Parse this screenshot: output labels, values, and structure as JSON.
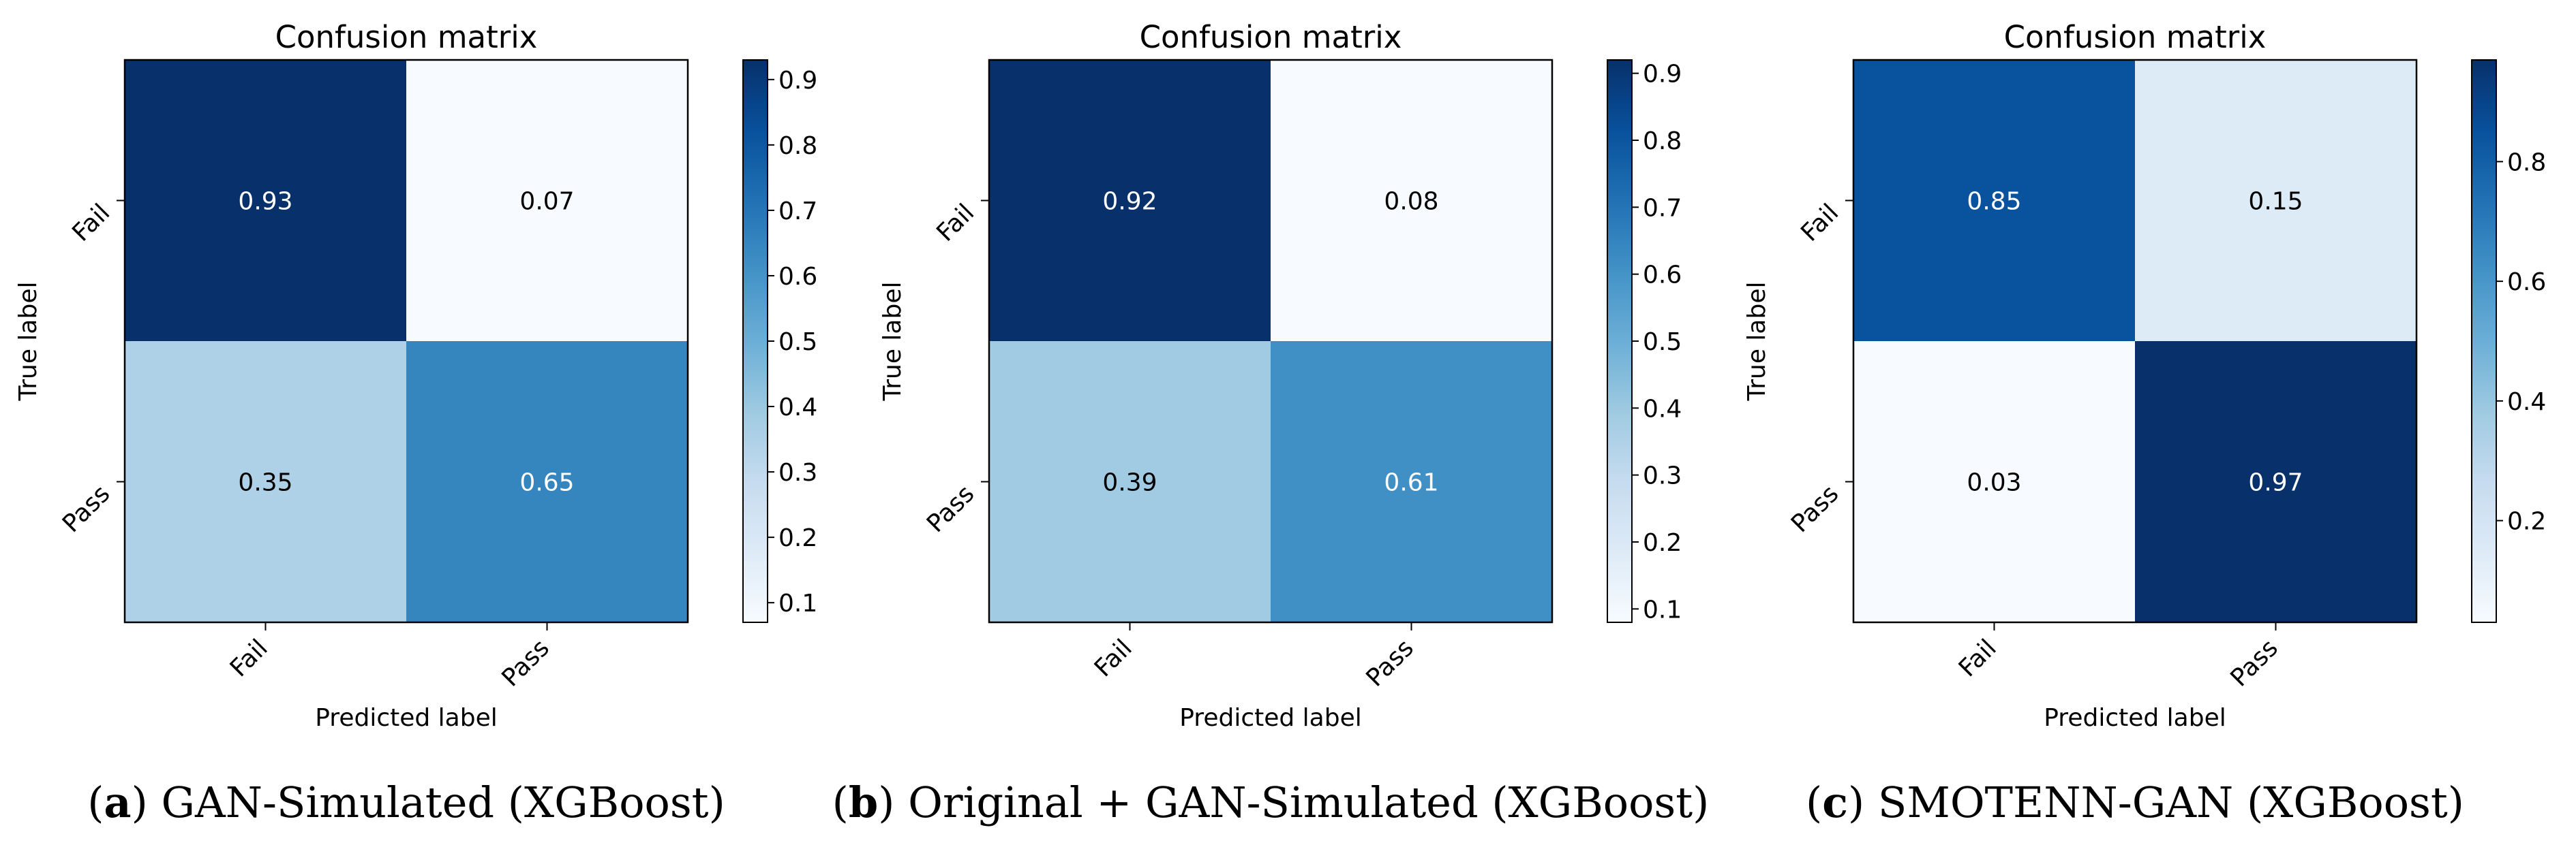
{
  "chart_data": [
    {
      "type": "heatmap",
      "title": "Confusion matrix",
      "xlabel": "Predicted label",
      "ylabel": "True label",
      "x_categories": [
        "Fail",
        "Pass"
      ],
      "y_categories": [
        "Fail",
        "Pass"
      ],
      "values": [
        [
          0.93,
          0.07
        ],
        [
          0.35,
          0.65
        ]
      ],
      "cell_labels": [
        [
          "0.93",
          "0.07"
        ],
        [
          "0.35",
          "0.65"
        ]
      ],
      "colormap": "Blues",
      "colorbar": {
        "range": [
          0.07,
          0.93
        ],
        "ticks": [
          "0.1",
          "0.2",
          "0.3",
          "0.4",
          "0.5",
          "0.6",
          "0.7",
          "0.8",
          "0.9"
        ]
      },
      "caption": {
        "letter": "a",
        "text": "GAN-Simulated (XGBoost)"
      }
    },
    {
      "type": "heatmap",
      "title": "Confusion matrix",
      "xlabel": "Predicted label",
      "ylabel": "True label",
      "x_categories": [
        "Fail",
        "Pass"
      ],
      "y_categories": [
        "Fail",
        "Pass"
      ],
      "values": [
        [
          0.92,
          0.08
        ],
        [
          0.39,
          0.61
        ]
      ],
      "cell_labels": [
        [
          "0.92",
          "0.08"
        ],
        [
          "0.39",
          "0.61"
        ]
      ],
      "colormap": "Blues",
      "colorbar": {
        "range": [
          0.08,
          0.92
        ],
        "ticks": [
          "0.1",
          "0.2",
          "0.3",
          "0.4",
          "0.5",
          "0.6",
          "0.7",
          "0.8",
          "0.9"
        ]
      },
      "caption": {
        "letter": "b",
        "text": "Original + GAN-Simulated (XGBoost)"
      }
    },
    {
      "type": "heatmap",
      "title": "Confusion matrix",
      "xlabel": "Predicted label",
      "ylabel": "True label",
      "x_categories": [
        "Fail",
        "Pass"
      ],
      "y_categories": [
        "Fail",
        "Pass"
      ],
      "values": [
        [
          0.85,
          0.15
        ],
        [
          0.03,
          0.97
        ]
      ],
      "cell_labels": [
        [
          "0.85",
          "0.15"
        ],
        [
          "0.03",
          "0.97"
        ]
      ],
      "colormap": "Blues",
      "colorbar": {
        "range": [
          0.03,
          0.97
        ],
        "ticks": [
          "0.2",
          "0.4",
          "0.6",
          "0.8"
        ]
      },
      "caption": {
        "letter": "c",
        "text": "SMOTENN-GAN (XGBoost)"
      }
    }
  ]
}
